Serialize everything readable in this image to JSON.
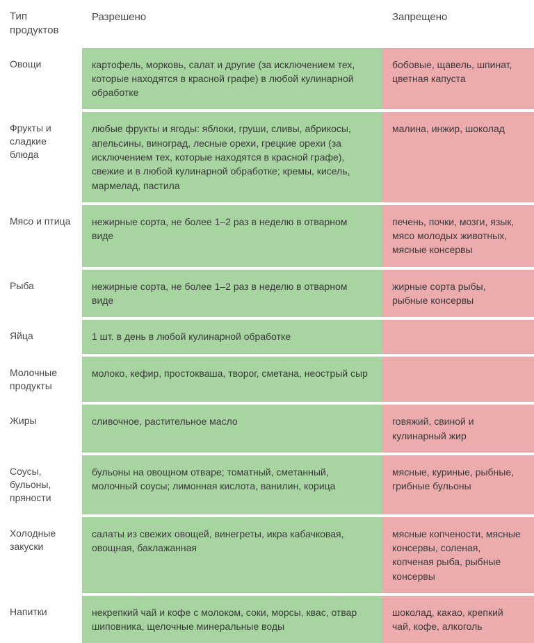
{
  "colors": {
    "allowed_bg": "#a7d4a0",
    "forbidden_bg": "#ecacad",
    "row_gap": "#ffffff",
    "text": "#333333"
  },
  "columns": {
    "type": "Тип продуктов",
    "allowed": "Разрешено",
    "forbidden": "Запрещено"
  },
  "rows": [
    {
      "type": "Овощи",
      "allowed": "картофель, морковь, салат и другие (за исключением тех, которые находятся в красной графе) в любой кулинарной обработке",
      "forbidden": "бобовые, щавель, шпинат, цветная капуста"
    },
    {
      "type": "Фрукты и сладкие блюда",
      "allowed": "любые фрукты и ягоды: яблоки, груши, сливы, абрикосы, апельсины, виноград, лесные орехи, грецкие орехи (за исключением тех, которые находятся в красной графе), свежие и в любой кулинарной обработке; кремы, кисель, мармелад, пастила",
      "forbidden": "малина, инжир, шоколад"
    },
    {
      "type": "Мясо и птица",
      "allowed": "нежирные сорта, не более 1–2 раз в неделю в отварном виде",
      "forbidden": "печень, почки, мозги, язык, мясо молодых животных, мясные консервы"
    },
    {
      "type": "Рыба",
      "allowed": "нежирные сорта, не более 1–2 раз в неделю в отварном виде",
      "forbidden": "жирные сорта рыбы, рыбные консервы"
    },
    {
      "type": "Яйца",
      "allowed": "1 шт. в день в любой кулинарной обработке",
      "forbidden": ""
    },
    {
      "type": "Молочные продукты",
      "allowed": "молоко, кефир, простокваша, творог, сметана, неострый сыр",
      "forbidden": ""
    },
    {
      "type": "Жиры",
      "allowed": "сливочное, растительное масло",
      "forbidden": "говяжий, свиной и кулинарный жир"
    },
    {
      "type": "Соусы, бульоны, пряности",
      "allowed": "бульоны на овощном отваре; томатный, сметанный, молочный соусы; лимонная кислота, ванилин, корица",
      "forbidden": "мясные, куриные, рыбные, грибные бульоны"
    },
    {
      "type": "Холодные закуски",
      "allowed": "салаты из свежих овощей, винегреты, икра кабачковая, овощная, баклажанная",
      "forbidden": "мясные копчености, мясные консервы, соленая, копченая рыба, рыбные консервы"
    },
    {
      "type": "Напитки",
      "allowed": "некрепкий чай и кофе с молоком, соки, морсы, квас, отвар шиповника, щелочные минеральные воды",
      "forbidden": "шоколад, какао, крепкий чай, кофе, алкоголь"
    }
  ]
}
